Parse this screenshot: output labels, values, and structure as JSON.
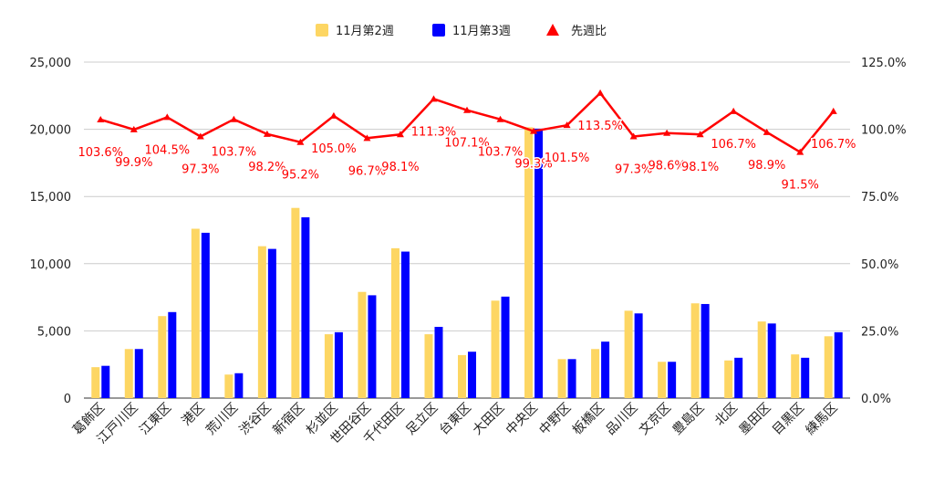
{
  "chart_data": {
    "type": "bar",
    "categories": [
      "葛飾区",
      "江戸川区",
      "江東区",
      "港区",
      "荒川区",
      "渋谷区",
      "新宿区",
      "杉並区",
      "世田谷区",
      "千代田区",
      "足立区",
      "台東区",
      "大田区",
      "中央区",
      "中野区",
      "板橋区",
      "品川区",
      "文京区",
      "豊島区",
      "北区",
      "墨田区",
      "目黒区",
      "練馬区"
    ],
    "series": [
      {
        "name": "11月第2週",
        "type": "bar",
        "axis": "left",
        "color": "#fdd663",
        "values": [
          2300,
          3650,
          6100,
          12600,
          1750,
          11300,
          14150,
          4750,
          7900,
          11150,
          4750,
          3200,
          7250,
          20150,
          2900,
          3650,
          6500,
          2700,
          7050,
          2800,
          5700,
          3250,
          4600
        ]
      },
      {
        "name": "11月第3週",
        "type": "bar",
        "axis": "left",
        "color": "#0000ff",
        "values": [
          2400,
          3650,
          6400,
          12300,
          1850,
          11100,
          13450,
          4900,
          7650,
          10900,
          5300,
          3450,
          7550,
          20050,
          2900,
          4200,
          6300,
          2700,
          7000,
          3000,
          5550,
          3000,
          4900
        ]
      },
      {
        "name": "先週比",
        "type": "line",
        "axis": "right",
        "color": "#ff0000",
        "values": [
          103.6,
          99.9,
          104.5,
          97.3,
          103.7,
          98.2,
          95.2,
          105.0,
          96.7,
          98.1,
          111.3,
          107.1,
          103.7,
          99.3,
          101.5,
          113.5,
          97.3,
          98.6,
          98.1,
          106.7,
          98.9,
          91.5,
          106.7
        ],
        "labels": [
          "103.6%",
          "99.9%",
          "104.5%",
          "97.3%",
          "103.7%",
          "98.2%",
          "95.2%",
          "105.0%",
          "96.7%",
          "98.1%",
          "111.3%",
          "107.1%",
          "103.7%",
          "99.3%",
          "101.5%",
          "113.5%",
          "97.3%",
          "98.6%",
          "98.1%",
          "106.7%",
          "98.9%",
          "91.5%",
          "106.7%"
        ]
      }
    ],
    "left_axis": {
      "min": 0,
      "max": 25000,
      "ticks": [
        "0",
        "5,000",
        "10,000",
        "15,000",
        "20,000",
        "25,000"
      ]
    },
    "right_axis": {
      "min": 0,
      "max": 125,
      "ticks": [
        "0.0%",
        "25.0%",
        "50.0%",
        "75.0%",
        "100.0%",
        "125.0%"
      ]
    },
    "grid": true,
    "legend_position": "top"
  }
}
